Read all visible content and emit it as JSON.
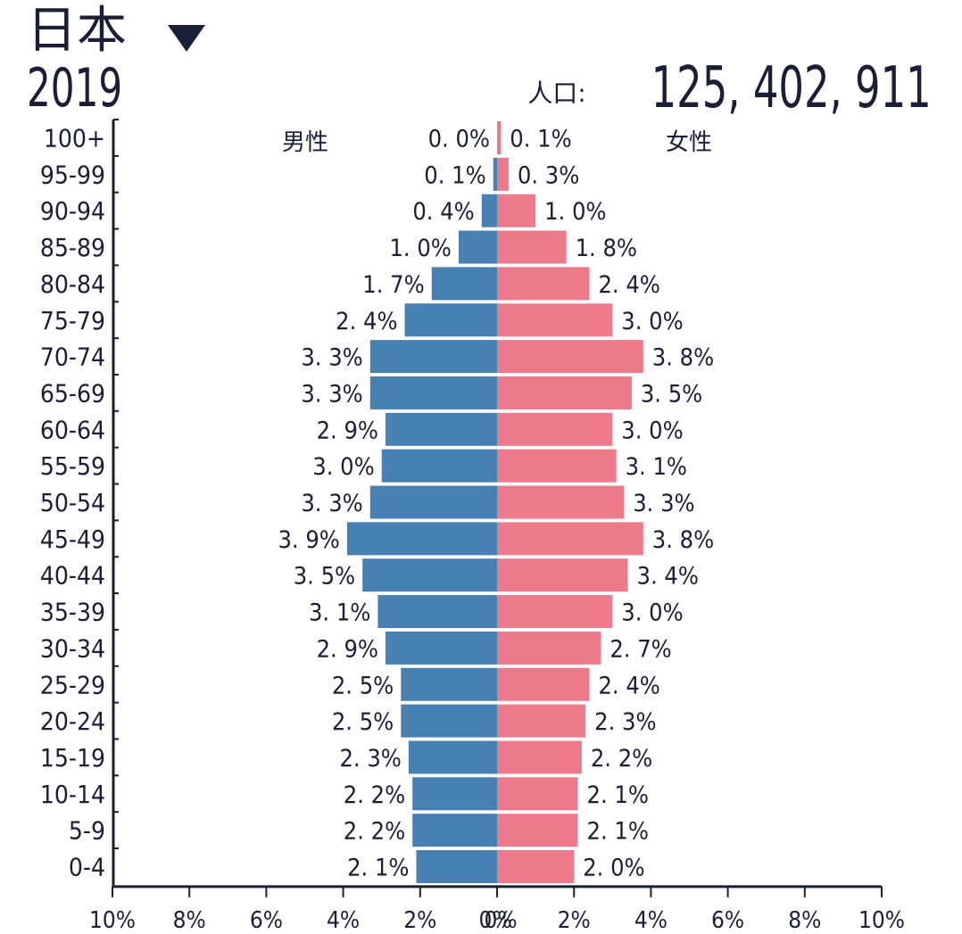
{
  "header": {
    "country": "日本",
    "year": "2019",
    "population_label": "人口:",
    "population_value": "125, 402, 911"
  },
  "colors": {
    "male": "#4781b3",
    "female": "#ed7a8a",
    "text": "#1a1f36"
  },
  "chart_data": {
    "type": "bar",
    "orientation": "horizontal-population-pyramid",
    "categories": [
      "100+",
      "95-99",
      "90-94",
      "85-89",
      "80-84",
      "75-79",
      "70-74",
      "65-69",
      "60-64",
      "55-59",
      "50-54",
      "45-49",
      "40-44",
      "35-39",
      "30-34",
      "25-29",
      "20-24",
      "15-19",
      "10-14",
      "5-9",
      "0-4"
    ],
    "series": [
      {
        "name": "男性",
        "values": [
          0.0,
          0.1,
          0.4,
          1.0,
          1.7,
          2.4,
          3.3,
          3.3,
          2.9,
          3.0,
          3.3,
          3.9,
          3.5,
          3.1,
          2.9,
          2.5,
          2.5,
          2.3,
          2.2,
          2.2,
          2.1
        ],
        "labels": [
          "0. 0%",
          "0. 1%",
          "0. 4%",
          "1. 0%",
          "1. 7%",
          "2. 4%",
          "3. 3%",
          "3. 3%",
          "2. 9%",
          "3. 0%",
          "3. 3%",
          "3. 9%",
          "3. 5%",
          "3. 1%",
          "2. 9%",
          "2. 5%",
          "2. 5%",
          "2. 3%",
          "2. 2%",
          "2. 2%",
          "2. 1%"
        ]
      },
      {
        "name": "女性",
        "values": [
          0.1,
          0.3,
          1.0,
          1.8,
          2.4,
          3.0,
          3.8,
          3.5,
          3.0,
          3.1,
          3.3,
          3.8,
          3.4,
          3.0,
          2.7,
          2.4,
          2.3,
          2.2,
          2.1,
          2.1,
          2.0
        ],
        "labels": [
          "0. 1%",
          "0. 3%",
          "1. 0%",
          "1. 8%",
          "2. 4%",
          "3. 0%",
          "3. 8%",
          "3. 5%",
          "3. 0%",
          "3. 1%",
          "3. 3%",
          "3. 8%",
          "3. 4%",
          "3. 0%",
          "2. 7%",
          "2. 4%",
          "2. 3%",
          "2. 2%",
          "2. 1%",
          "2. 1%",
          "2. 0%"
        ]
      }
    ],
    "x_ticks_left": [
      "10%",
      "8%",
      "6%",
      "4%",
      "2%",
      "0%"
    ],
    "x_ticks_right": [
      "0%",
      "2%",
      "4%",
      "6%",
      "8%",
      "10%"
    ],
    "xlim": [
      -10,
      10
    ],
    "grid": false
  }
}
